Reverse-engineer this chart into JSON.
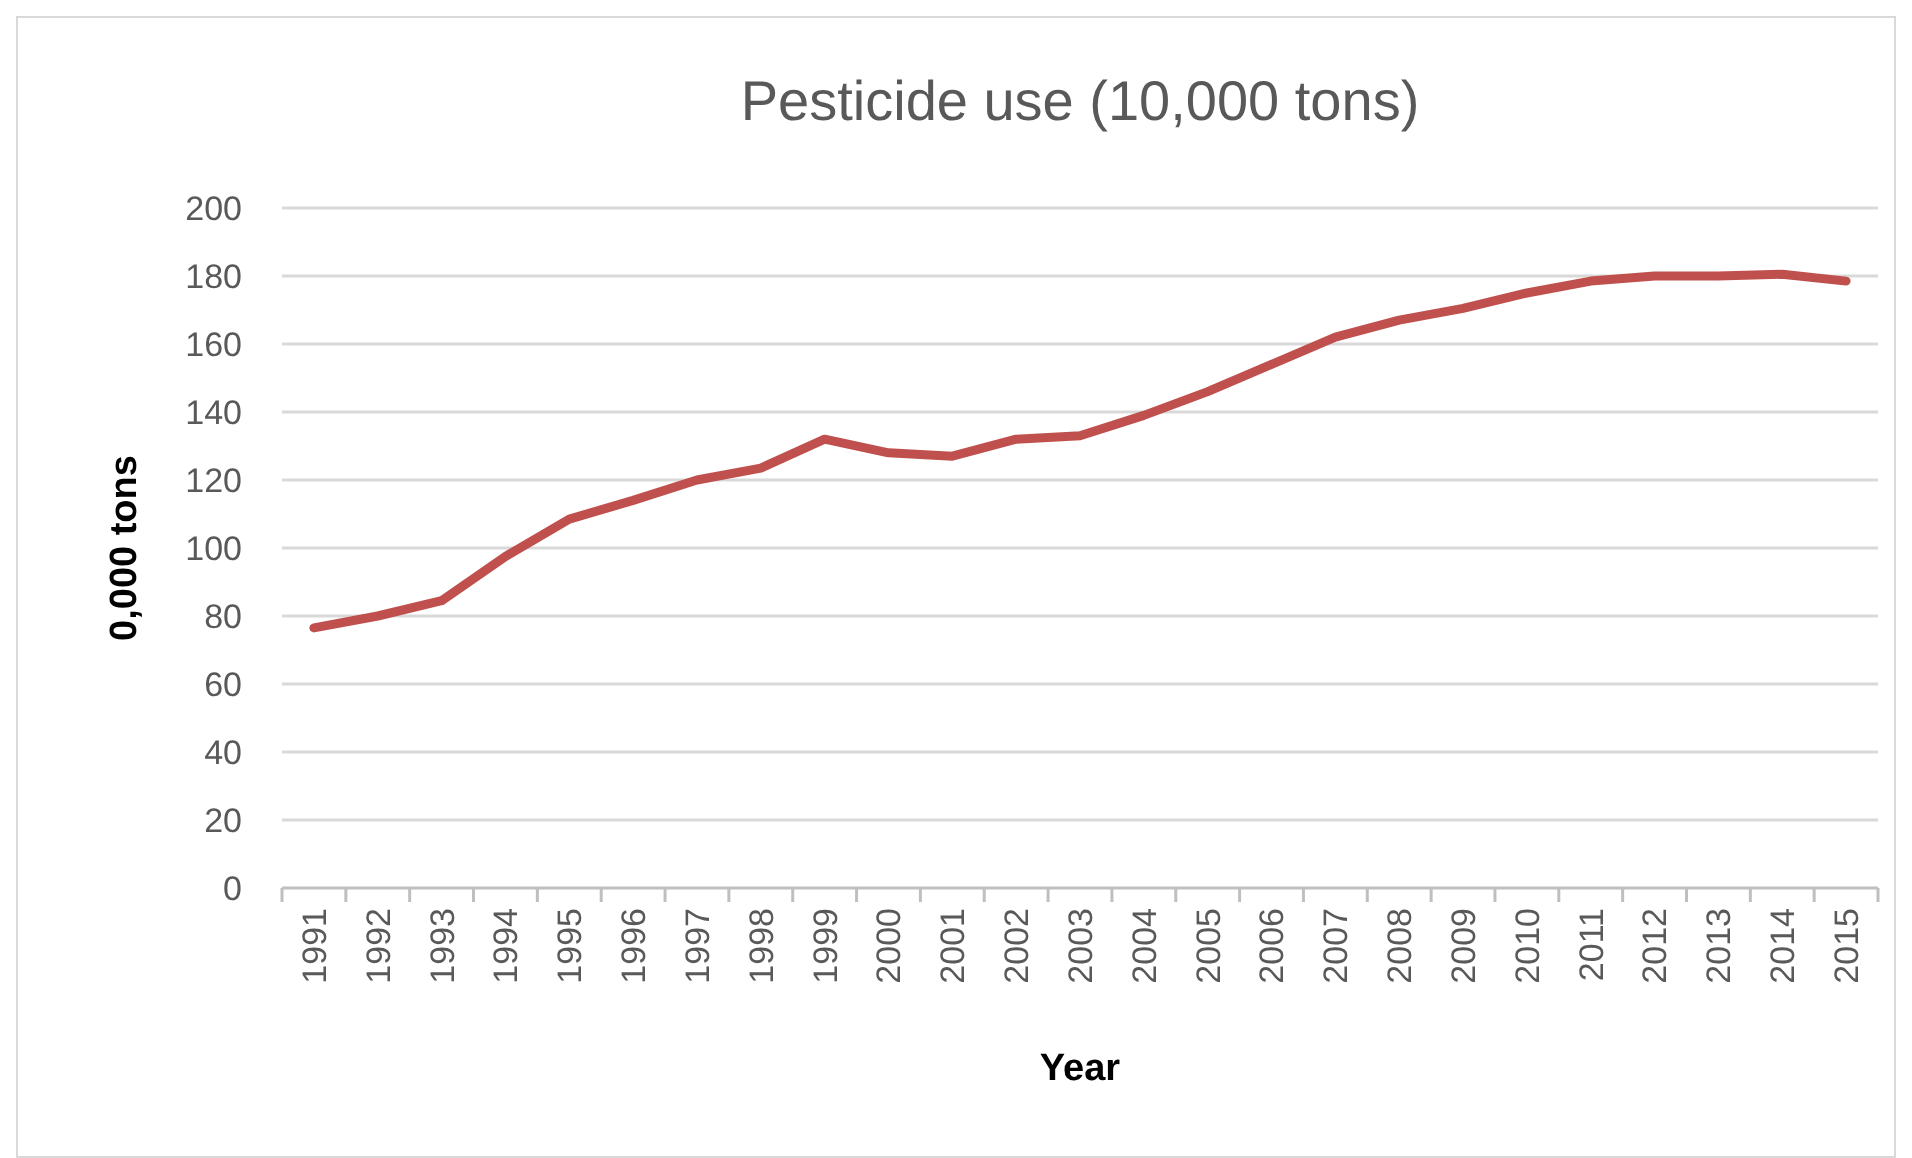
{
  "chart_data": {
    "type": "line",
    "title": "Pesticide use (10,000 tons)",
    "xlabel": "Year",
    "ylabel": "0,000 tons",
    "categories": [
      "1991",
      "1992",
      "1993",
      "1994",
      "1995",
      "1996",
      "1997",
      "1998",
      "1999",
      "2000",
      "2001",
      "2002",
      "2003",
      "2004",
      "2005",
      "2006",
      "2007",
      "2008",
      "2009",
      "2010",
      "2011",
      "2012",
      "2013",
      "2014",
      "2015"
    ],
    "series": [
      {
        "color": "#c0504d",
        "values": [
          76.5,
          80,
          84.5,
          97.5,
          108.5,
          114,
          120,
          123.5,
          132,
          128,
          127,
          132,
          133,
          139,
          146,
          154,
          162,
          167,
          170.5,
          175,
          178.5,
          180,
          180,
          180.5,
          178.5
        ]
      }
    ],
    "ylim": [
      0,
      200
    ],
    "yticks": [
      0,
      20,
      40,
      60,
      80,
      100,
      120,
      140,
      160,
      180,
      200
    ],
    "grid": "y",
    "marker": "none",
    "line_style": "solid"
  }
}
